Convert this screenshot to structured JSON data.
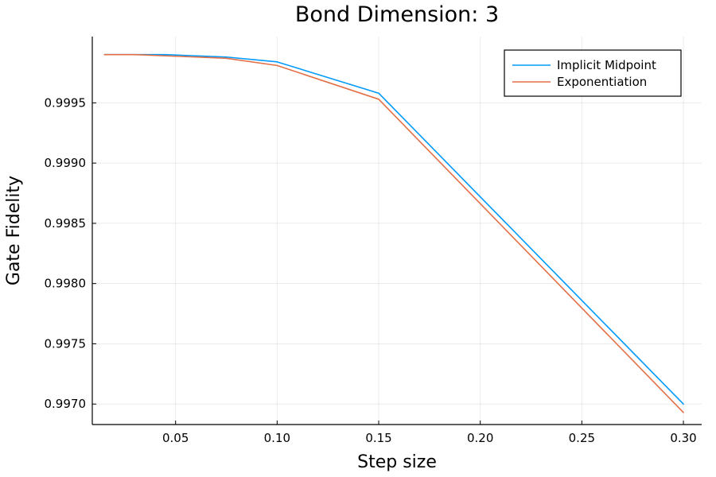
{
  "chart_data": {
    "type": "line",
    "title": "Bond Dimension: 3",
    "xlabel": "Step size",
    "ylabel": "Gate Fidelity",
    "xlim": [
      0.009,
      0.309
    ],
    "ylim": [
      0.99683,
      1.00005
    ],
    "x_ticks": [
      0.05,
      0.1,
      0.15,
      0.2,
      0.25,
      0.3
    ],
    "x_tick_labels": [
      "0.05",
      "0.10",
      "0.15",
      "0.20",
      "0.25",
      "0.30"
    ],
    "y_ticks": [
      0.997,
      0.9975,
      0.998,
      0.9985,
      0.999,
      0.9995
    ],
    "y_tick_labels": [
      "0.9970",
      "0.9975",
      "0.9980",
      "0.9985",
      "0.9990",
      "0.9995"
    ],
    "grid": true,
    "legend_position": "top-right",
    "series": [
      {
        "name": "Implicit Midpoint",
        "color": "#009AFA",
        "x": [
          0.015,
          0.03,
          0.045,
          0.06,
          0.075,
          0.1,
          0.15,
          0.3
        ],
        "y": [
          0.9999,
          0.9999,
          0.9999,
          0.99989,
          0.99988,
          0.99984,
          0.99958,
          0.997
        ]
      },
      {
        "name": "Exponentiation",
        "color": "#E36F47",
        "x": [
          0.015,
          0.03,
          0.045,
          0.06,
          0.075,
          0.1,
          0.15,
          0.3
        ],
        "y": [
          0.9999,
          0.9999,
          0.99989,
          0.99988,
          0.99987,
          0.99981,
          0.99953,
          0.99693
        ]
      }
    ]
  }
}
